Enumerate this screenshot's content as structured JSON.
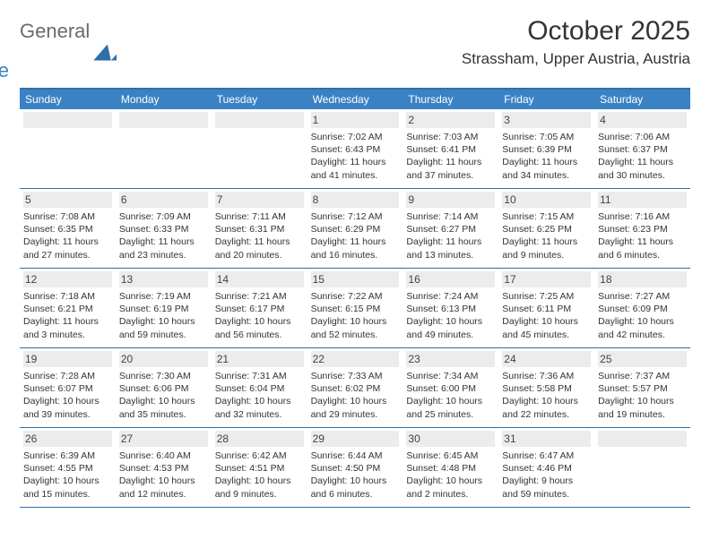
{
  "logo": {
    "part1": "General",
    "part2": "Blue"
  },
  "header": {
    "month_title": "October 2025",
    "location": "Strassham, Upper Austria, Austria"
  },
  "day_labels": [
    "Sunday",
    "Monday",
    "Tuesday",
    "Wednesday",
    "Thursday",
    "Friday",
    "Saturday"
  ],
  "colors": {
    "header_bg": "#3b82c4",
    "header_border": "#2f6fa8",
    "daynum_bg": "#ececec"
  },
  "weeks": [
    [
      null,
      null,
      null,
      {
        "n": "1",
        "sr": "Sunrise: 7:02 AM",
        "ss": "Sunset: 6:43 PM",
        "dl": "Daylight: 11 hours and 41 minutes."
      },
      {
        "n": "2",
        "sr": "Sunrise: 7:03 AM",
        "ss": "Sunset: 6:41 PM",
        "dl": "Daylight: 11 hours and 37 minutes."
      },
      {
        "n": "3",
        "sr": "Sunrise: 7:05 AM",
        "ss": "Sunset: 6:39 PM",
        "dl": "Daylight: 11 hours and 34 minutes."
      },
      {
        "n": "4",
        "sr": "Sunrise: 7:06 AM",
        "ss": "Sunset: 6:37 PM",
        "dl": "Daylight: 11 hours and 30 minutes."
      }
    ],
    [
      {
        "n": "5",
        "sr": "Sunrise: 7:08 AM",
        "ss": "Sunset: 6:35 PM",
        "dl": "Daylight: 11 hours and 27 minutes."
      },
      {
        "n": "6",
        "sr": "Sunrise: 7:09 AM",
        "ss": "Sunset: 6:33 PM",
        "dl": "Daylight: 11 hours and 23 minutes."
      },
      {
        "n": "7",
        "sr": "Sunrise: 7:11 AM",
        "ss": "Sunset: 6:31 PM",
        "dl": "Daylight: 11 hours and 20 minutes."
      },
      {
        "n": "8",
        "sr": "Sunrise: 7:12 AM",
        "ss": "Sunset: 6:29 PM",
        "dl": "Daylight: 11 hours and 16 minutes."
      },
      {
        "n": "9",
        "sr": "Sunrise: 7:14 AM",
        "ss": "Sunset: 6:27 PM",
        "dl": "Daylight: 11 hours and 13 minutes."
      },
      {
        "n": "10",
        "sr": "Sunrise: 7:15 AM",
        "ss": "Sunset: 6:25 PM",
        "dl": "Daylight: 11 hours and 9 minutes."
      },
      {
        "n": "11",
        "sr": "Sunrise: 7:16 AM",
        "ss": "Sunset: 6:23 PM",
        "dl": "Daylight: 11 hours and 6 minutes."
      }
    ],
    [
      {
        "n": "12",
        "sr": "Sunrise: 7:18 AM",
        "ss": "Sunset: 6:21 PM",
        "dl": "Daylight: 11 hours and 3 minutes."
      },
      {
        "n": "13",
        "sr": "Sunrise: 7:19 AM",
        "ss": "Sunset: 6:19 PM",
        "dl": "Daylight: 10 hours and 59 minutes."
      },
      {
        "n": "14",
        "sr": "Sunrise: 7:21 AM",
        "ss": "Sunset: 6:17 PM",
        "dl": "Daylight: 10 hours and 56 minutes."
      },
      {
        "n": "15",
        "sr": "Sunrise: 7:22 AM",
        "ss": "Sunset: 6:15 PM",
        "dl": "Daylight: 10 hours and 52 minutes."
      },
      {
        "n": "16",
        "sr": "Sunrise: 7:24 AM",
        "ss": "Sunset: 6:13 PM",
        "dl": "Daylight: 10 hours and 49 minutes."
      },
      {
        "n": "17",
        "sr": "Sunrise: 7:25 AM",
        "ss": "Sunset: 6:11 PM",
        "dl": "Daylight: 10 hours and 45 minutes."
      },
      {
        "n": "18",
        "sr": "Sunrise: 7:27 AM",
        "ss": "Sunset: 6:09 PM",
        "dl": "Daylight: 10 hours and 42 minutes."
      }
    ],
    [
      {
        "n": "19",
        "sr": "Sunrise: 7:28 AM",
        "ss": "Sunset: 6:07 PM",
        "dl": "Daylight: 10 hours and 39 minutes."
      },
      {
        "n": "20",
        "sr": "Sunrise: 7:30 AM",
        "ss": "Sunset: 6:06 PM",
        "dl": "Daylight: 10 hours and 35 minutes."
      },
      {
        "n": "21",
        "sr": "Sunrise: 7:31 AM",
        "ss": "Sunset: 6:04 PM",
        "dl": "Daylight: 10 hours and 32 minutes."
      },
      {
        "n": "22",
        "sr": "Sunrise: 7:33 AM",
        "ss": "Sunset: 6:02 PM",
        "dl": "Daylight: 10 hours and 29 minutes."
      },
      {
        "n": "23",
        "sr": "Sunrise: 7:34 AM",
        "ss": "Sunset: 6:00 PM",
        "dl": "Daylight: 10 hours and 25 minutes."
      },
      {
        "n": "24",
        "sr": "Sunrise: 7:36 AM",
        "ss": "Sunset: 5:58 PM",
        "dl": "Daylight: 10 hours and 22 minutes."
      },
      {
        "n": "25",
        "sr": "Sunrise: 7:37 AM",
        "ss": "Sunset: 5:57 PM",
        "dl": "Daylight: 10 hours and 19 minutes."
      }
    ],
    [
      {
        "n": "26",
        "sr": "Sunrise: 6:39 AM",
        "ss": "Sunset: 4:55 PM",
        "dl": "Daylight: 10 hours and 15 minutes."
      },
      {
        "n": "27",
        "sr": "Sunrise: 6:40 AM",
        "ss": "Sunset: 4:53 PM",
        "dl": "Daylight: 10 hours and 12 minutes."
      },
      {
        "n": "28",
        "sr": "Sunrise: 6:42 AM",
        "ss": "Sunset: 4:51 PM",
        "dl": "Daylight: 10 hours and 9 minutes."
      },
      {
        "n": "29",
        "sr": "Sunrise: 6:44 AM",
        "ss": "Sunset: 4:50 PM",
        "dl": "Daylight: 10 hours and 6 minutes."
      },
      {
        "n": "30",
        "sr": "Sunrise: 6:45 AM",
        "ss": "Sunset: 4:48 PM",
        "dl": "Daylight: 10 hours and 2 minutes."
      },
      {
        "n": "31",
        "sr": "Sunrise: 6:47 AM",
        "ss": "Sunset: 4:46 PM",
        "dl": "Daylight: 9 hours and 59 minutes."
      },
      null
    ]
  ]
}
